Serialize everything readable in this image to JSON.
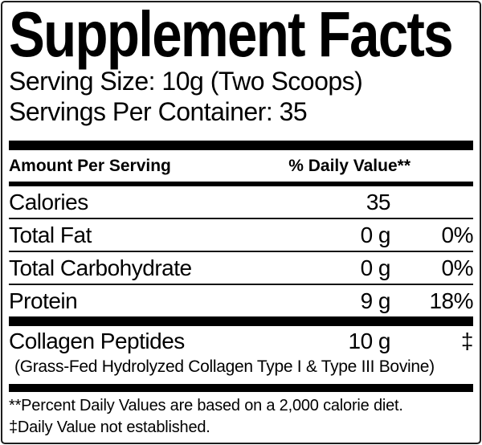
{
  "label": {
    "title": "Supplement Facts",
    "serving_size": "Serving Size: 10g (Two Scoops)",
    "servings_per_container": "Servings Per Container: 35",
    "header": {
      "amount_per_serving": "Amount Per Serving",
      "daily_value": "% Daily Value**"
    },
    "rows": [
      {
        "name": "Calories",
        "amount": "35",
        "dv": ""
      },
      {
        "name": "Total Fat",
        "amount": "0 g",
        "dv": "0%"
      },
      {
        "name": "Total Carbohydrate",
        "amount": "0 g",
        "dv": "0%"
      },
      {
        "name": "Protein",
        "amount": "9 g",
        "dv": "18%"
      }
    ],
    "supplement_rows": [
      {
        "name": "Collagen Peptides",
        "amount": "10 g",
        "dv": "‡",
        "description": "(Grass-Fed Hydrolyzed Collagen Type I & Type III Bovine)"
      }
    ],
    "footnotes": [
      "**Percent Daily Values are based on a 2,000 calorie diet.",
      "‡Daily Value not established."
    ],
    "colors": {
      "text": "#000000",
      "background": "#ffffff",
      "divider": "#000000"
    }
  }
}
